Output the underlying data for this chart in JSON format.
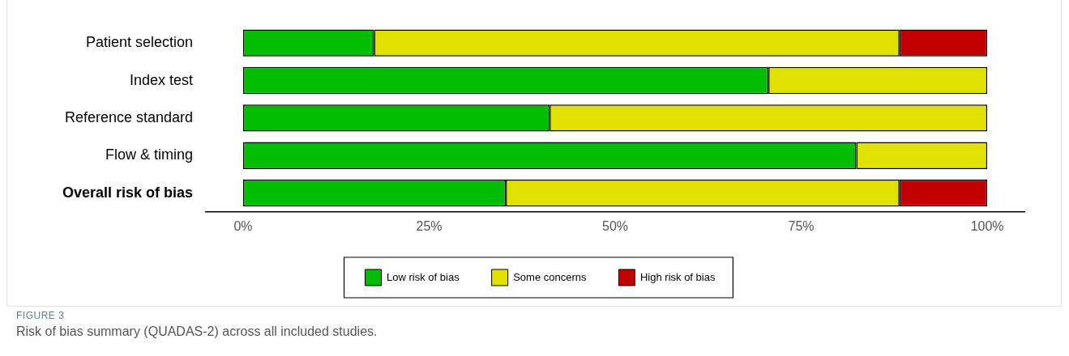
{
  "chart_data": {
    "type": "bar",
    "orientation": "horizontal",
    "stacked": true,
    "categories": [
      "Patient selection",
      "Index test",
      "Reference standard",
      "Flow & timing",
      "Overall risk of bias"
    ],
    "series": [
      {
        "name": "Low risk of bias",
        "color": "#02bd01",
        "values": [
          17.6,
          70.6,
          41.2,
          82.4,
          35.3
        ]
      },
      {
        "name": "Some concerns",
        "color": "#e1e100",
        "values": [
          70.6,
          29.4,
          58.8,
          17.6,
          52.9
        ]
      },
      {
        "name": "High risk of bias",
        "color": "#c20000",
        "values": [
          11.8,
          null,
          null,
          null,
          11.8
        ]
      }
    ],
    "xlim": [
      -5,
      105
    ],
    "xticks": [
      {
        "value": 0,
        "label": "0%"
      },
      {
        "value": 25,
        "label": "25%"
      },
      {
        "value": 50,
        "label": "50%"
      },
      {
        "value": 75,
        "label": "75%"
      },
      {
        "value": 100,
        "label": "100%"
      }
    ],
    "grid": false,
    "legend": "bottom",
    "annotations": [
      "FIGURE 3",
      "Risk of bias summary (QUADAS-2) across all included studies."
    ]
  }
}
